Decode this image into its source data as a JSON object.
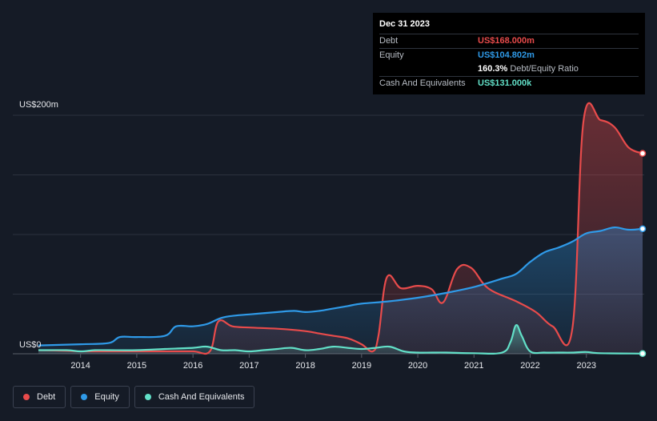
{
  "tooltip": {
    "date": "Dec 31 2023",
    "rows": [
      {
        "label": "Debt",
        "value": "US$168.000m",
        "color": "#e84b4b"
      },
      {
        "label": "Equity",
        "value": "US$104.802m",
        "color": "#2f9ae8"
      },
      {
        "label": "",
        "value": "160.3%",
        "extra": "Debt/Equity Ratio",
        "color": "#ffffff"
      },
      {
        "label": "Cash And Equivalents",
        "value": "US$131.000k",
        "color": "#62e0c8"
      }
    ]
  },
  "legend": [
    {
      "label": "Debt",
      "color": "#e84b4b"
    },
    {
      "label": "Equity",
      "color": "#2f9ae8"
    },
    {
      "label": "Cash And Equivalents",
      "color": "#62e0c8"
    }
  ],
  "chart_data": {
    "type": "area",
    "title": "",
    "ylabel_top": "US$200m",
    "ylabel_bottom": "US$0",
    "ylim": [
      0,
      200
    ],
    "xlim": [
      2013.25,
      2024.0
    ],
    "x_ticks": [
      "2014",
      "2015",
      "2016",
      "2017",
      "2018",
      "2019",
      "2020",
      "2021",
      "2022",
      "2023"
    ],
    "series": [
      {
        "name": "Debt",
        "color": "#e84b4b",
        "points": [
          [
            2013.25,
            3
          ],
          [
            2013.75,
            2.5
          ],
          [
            2014.0,
            2
          ],
          [
            2014.5,
            2
          ],
          [
            2015.0,
            2
          ],
          [
            2015.5,
            2
          ],
          [
            2016.0,
            2
          ],
          [
            2016.3,
            2
          ],
          [
            2016.45,
            27
          ],
          [
            2016.7,
            23
          ],
          [
            2017.0,
            22
          ],
          [
            2017.5,
            21
          ],
          [
            2018.0,
            19
          ],
          [
            2018.25,
            17
          ],
          [
            2018.5,
            15
          ],
          [
            2018.75,
            13
          ],
          [
            2019.0,
            8
          ],
          [
            2019.2,
            2
          ],
          [
            2019.3,
            15
          ],
          [
            2019.45,
            64
          ],
          [
            2019.7,
            55
          ],
          [
            2020.0,
            57
          ],
          [
            2020.25,
            54
          ],
          [
            2020.45,
            43
          ],
          [
            2020.7,
            71
          ],
          [
            2020.95,
            72
          ],
          [
            2021.25,
            55
          ],
          [
            2021.75,
            44
          ],
          [
            2022.1,
            35
          ],
          [
            2022.4,
            23
          ],
          [
            2022.75,
            21
          ],
          [
            2022.95,
            196
          ],
          [
            2023.25,
            196
          ],
          [
            2023.5,
            190
          ],
          [
            2023.75,
            173
          ],
          [
            2024.0,
            168
          ]
        ]
      },
      {
        "name": "Equity",
        "color": "#2f9ae8",
        "points": [
          [
            2013.25,
            7
          ],
          [
            2014.0,
            8
          ],
          [
            2014.5,
            9
          ],
          [
            2014.7,
            14
          ],
          [
            2015.0,
            14
          ],
          [
            2015.5,
            15
          ],
          [
            2015.7,
            23
          ],
          [
            2016.0,
            23
          ],
          [
            2016.25,
            25
          ],
          [
            2016.5,
            30
          ],
          [
            2016.75,
            32
          ],
          [
            2017.0,
            33
          ],
          [
            2017.5,
            35
          ],
          [
            2017.8,
            36
          ],
          [
            2018.0,
            35
          ],
          [
            2018.25,
            36
          ],
          [
            2018.5,
            38
          ],
          [
            2018.75,
            40
          ],
          [
            2019.0,
            42
          ],
          [
            2019.5,
            44
          ],
          [
            2020.0,
            47
          ],
          [
            2020.5,
            51
          ],
          [
            2021.0,
            56
          ],
          [
            2021.5,
            63
          ],
          [
            2021.75,
            67
          ],
          [
            2022.0,
            77
          ],
          [
            2022.25,
            85
          ],
          [
            2022.5,
            89
          ],
          [
            2022.75,
            94
          ],
          [
            2023.0,
            101
          ],
          [
            2023.25,
            103
          ],
          [
            2023.5,
            106
          ],
          [
            2023.75,
            104
          ],
          [
            2024.0,
            104.8
          ]
        ]
      },
      {
        "name": "Cash And Equivalents",
        "color": "#62e0c8",
        "points": [
          [
            2013.25,
            3
          ],
          [
            2013.75,
            3
          ],
          [
            2014.0,
            2
          ],
          [
            2014.25,
            3
          ],
          [
            2014.5,
            3
          ],
          [
            2015.0,
            3
          ],
          [
            2015.5,
            4
          ],
          [
            2016.0,
            5
          ],
          [
            2016.25,
            6
          ],
          [
            2016.5,
            3
          ],
          [
            2016.75,
            3
          ],
          [
            2017.0,
            2
          ],
          [
            2017.25,
            3
          ],
          [
            2017.5,
            4
          ],
          [
            2017.75,
            5
          ],
          [
            2018.0,
            3
          ],
          [
            2018.25,
            4
          ],
          [
            2018.5,
            6
          ],
          [
            2018.75,
            5
          ],
          [
            2019.0,
            4
          ],
          [
            2019.25,
            5
          ],
          [
            2019.5,
            6
          ],
          [
            2019.75,
            2
          ],
          [
            2020.0,
            1
          ],
          [
            2020.25,
            1
          ],
          [
            2020.5,
            1
          ],
          [
            2021.0,
            0.5
          ],
          [
            2021.5,
            1
          ],
          [
            2021.65,
            10
          ],
          [
            2021.75,
            24
          ],
          [
            2021.85,
            15
          ],
          [
            2022.0,
            2
          ],
          [
            2022.25,
            1
          ],
          [
            2022.5,
            1
          ],
          [
            2022.75,
            1
          ],
          [
            2023.0,
            1.5
          ],
          [
            2023.25,
            0.5
          ],
          [
            2024.0,
            0.131
          ]
        ]
      }
    ]
  }
}
